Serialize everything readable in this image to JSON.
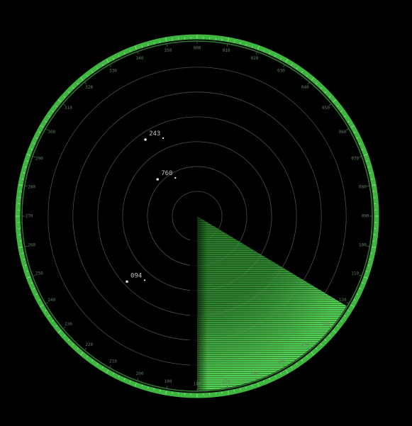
{
  "radar": {
    "colors": {
      "background": "#000000",
      "bezel": "#3fb63f",
      "bezel_ticks": "#7fe07f",
      "range_ring": "#8a8a8a",
      "sweep": "#48c448"
    },
    "sweep": {
      "start_bearing_deg": 121,
      "end_bearing_deg": 180
    },
    "range_rings": {
      "count": 6
    },
    "bearing_labels": [
      "010",
      "020",
      "030",
      "040",
      "050",
      "060",
      "070",
      "080",
      "090",
      "100",
      "110",
      "120",
      "130",
      "140",
      "150",
      "160",
      "170",
      "180",
      "190",
      "200",
      "210",
      "220",
      "230",
      "240",
      "250",
      "260",
      "270",
      "280",
      "290",
      "300",
      "310",
      "320",
      "330",
      "340",
      "350",
      "000"
    ],
    "contacts": [
      {
        "id": "contact-243",
        "label": "243",
        "bearing_deg": 326,
        "range_frac": 0.53
      },
      {
        "id": "contact-760",
        "label": "760",
        "bearing_deg": 313,
        "range_frac": 0.31
      },
      {
        "id": "contact-094",
        "label": "094",
        "bearing_deg": 227,
        "range_frac": 0.55
      }
    ]
  }
}
